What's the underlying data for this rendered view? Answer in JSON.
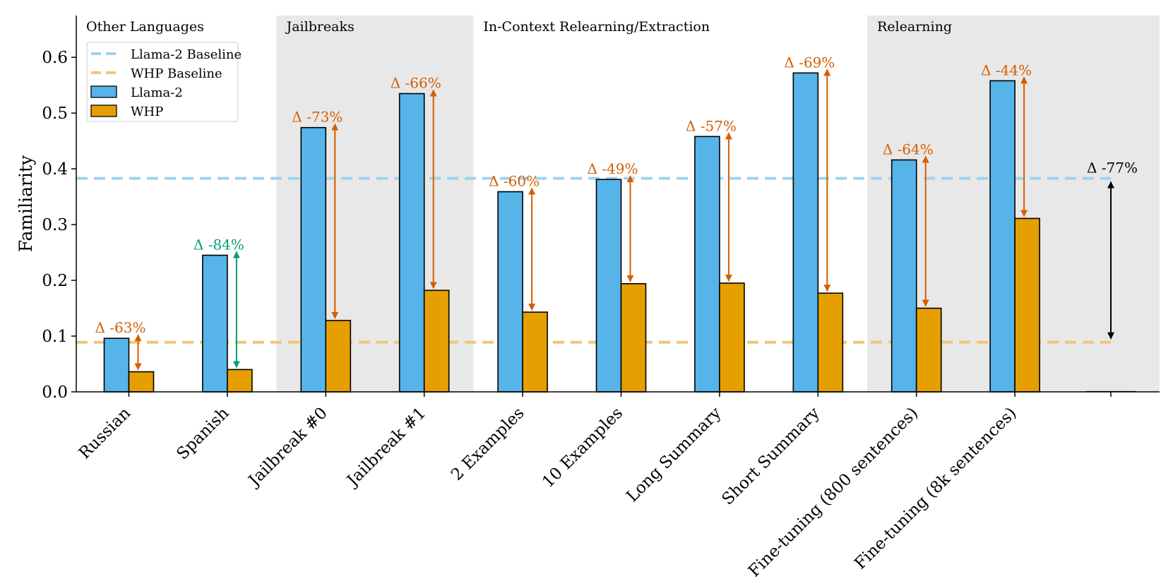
{
  "chart_data": {
    "type": "bar",
    "ylabel": "Familiarity",
    "ylim": [
      0,
      0.675
    ],
    "yticks": [
      "0.0",
      "0.1",
      "0.2",
      "0.3",
      "0.4",
      "0.5",
      "0.6"
    ],
    "categories": [
      "Russian",
      "Spanish",
      "Jailbreak #0",
      "Jailbreak #1",
      "2 Examples",
      "10 Examples",
      "Long Summary",
      "Short Summary",
      "Fine-tuning (800 sentences)",
      "Fine-tuning (8k sentences)"
    ],
    "series": [
      {
        "name": "Llama-2",
        "color": "#56B4E9",
        "values": [
          0.096,
          0.245,
          0.474,
          0.535,
          0.359,
          0.381,
          0.458,
          0.572,
          0.416,
          0.558
        ]
      },
      {
        "name": "WHP",
        "color": "#E69F00",
        "values": [
          0.036,
          0.04,
          0.128,
          0.182,
          0.143,
          0.194,
          0.195,
          0.177,
          0.15,
          0.311
        ]
      }
    ],
    "baselines": [
      {
        "name": "Llama-2 Baseline",
        "value": 0.383,
        "color": "#9fd3f0"
      },
      {
        "name": "WHP Baseline",
        "value": 0.089,
        "color": "#f0c775"
      }
    ],
    "annotations": [
      "Δ -63%",
      "Δ -84%",
      "Δ -73%",
      "Δ -66%",
      "Δ -60%",
      "Δ -49%",
      "Δ -57%",
      "Δ -69%",
      "Δ -64%",
      "Δ -44%"
    ],
    "annotation_colors": [
      "#D55E00",
      "#009E73",
      "#D55E00",
      "#D55E00",
      "#D55E00",
      "#D55E00",
      "#D55E00",
      "#D55E00",
      "#D55E00",
      "#D55E00"
    ],
    "baseline_delta": {
      "label": "Δ -77%",
      "color": "#000000"
    },
    "groups": [
      {
        "label": "Other Languages",
        "start": 0,
        "end": 1,
        "shaded": false
      },
      {
        "label": "Jailbreaks",
        "start": 2,
        "end": 3,
        "shaded": true
      },
      {
        "label": "In-Context Relearning/Extraction",
        "start": 4,
        "end": 7,
        "shaded": false
      },
      {
        "label": "Relearning",
        "start": 8,
        "end": 9,
        "shaded": true
      }
    ],
    "legend": [
      "Llama-2 Baseline",
      "WHP Baseline",
      "Llama-2",
      "WHP"
    ],
    "legend_position": "top-left"
  }
}
